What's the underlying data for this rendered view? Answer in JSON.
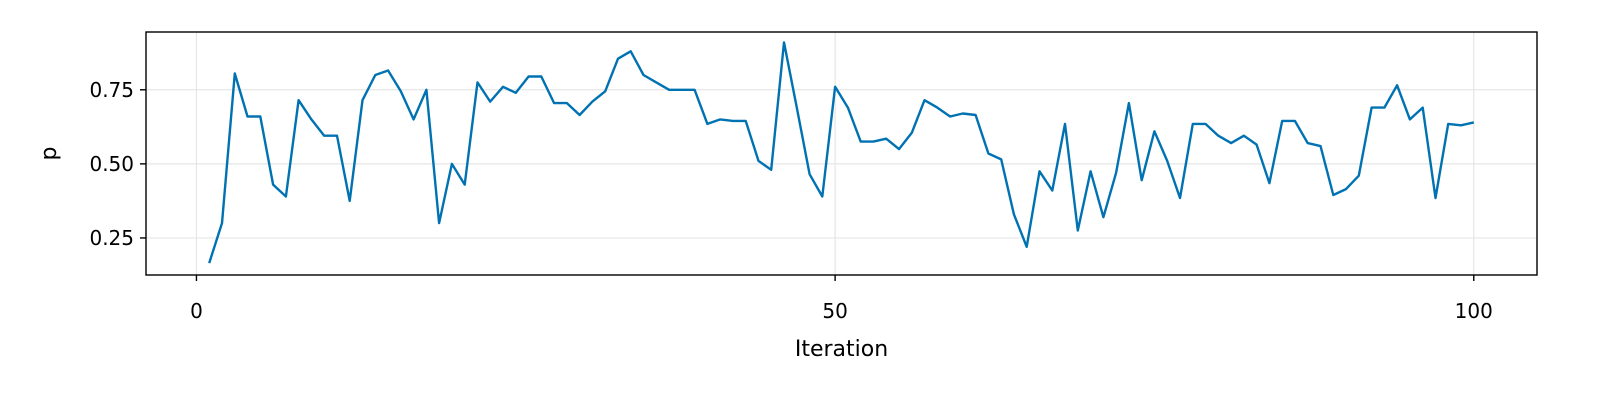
{
  "chart_data": {
    "type": "line",
    "title": "",
    "xlabel": "Iteration",
    "ylabel": "p",
    "xlim": [
      -3.95,
      104.95
    ],
    "ylim": [
      0.125,
      0.945
    ],
    "xticks": [
      0,
      50,
      100
    ],
    "xtick_labels": [
      "0",
      "50",
      "100"
    ],
    "yticks": [
      0.25,
      0.5,
      0.75
    ],
    "ytick_labels": [
      "0.25",
      "0.50",
      "0.75"
    ],
    "grid": true,
    "legend": "none",
    "series": [
      {
        "color": "#0072b2",
        "x": [
          1,
          2,
          3,
          4,
          5,
          6,
          7,
          8,
          9,
          10,
          11,
          12,
          13,
          14,
          15,
          16,
          17,
          18,
          19,
          20,
          21,
          22,
          23,
          24,
          25,
          26,
          27,
          28,
          29,
          30,
          31,
          32,
          33,
          34,
          35,
          36,
          37,
          38,
          39,
          40,
          41,
          42,
          43,
          44,
          45,
          46,
          47,
          48,
          49,
          50,
          51,
          52,
          53,
          54,
          55,
          56,
          57,
          58,
          59,
          60,
          61,
          62,
          63,
          64,
          65,
          66,
          67,
          68,
          69,
          70,
          71,
          72,
          73,
          74,
          75,
          76,
          77,
          78,
          79,
          80,
          81,
          82,
          83,
          84,
          85,
          86,
          87,
          88,
          89,
          90,
          91,
          92,
          93,
          94,
          95,
          96,
          97,
          98,
          99,
          100
        ],
        "y": [
          0.165,
          0.3,
          0.805,
          0.66,
          0.66,
          0.43,
          0.39,
          0.715,
          0.65,
          0.595,
          0.595,
          0.375,
          0.715,
          0.8,
          0.815,
          0.745,
          0.65,
          0.75,
          0.3,
          0.5,
          0.43,
          0.775,
          0.71,
          0.76,
          0.74,
          0.795,
          0.795,
          0.705,
          0.705,
          0.665,
          0.71,
          0.745,
          0.855,
          0.88,
          0.8,
          0.775,
          0.75,
          0.75,
          0.75,
          0.635,
          0.65,
          0.645,
          0.645,
          0.51,
          0.48,
          0.91,
          0.69,
          0.465,
          0.39,
          0.76,
          0.69,
          0.575,
          0.575,
          0.585,
          0.55,
          0.605,
          0.715,
          0.69,
          0.66,
          0.67,
          0.665,
          0.535,
          0.515,
          0.33,
          0.22,
          0.475,
          0.41,
          0.635,
          0.275,
          0.475,
          0.32,
          0.47,
          0.705,
          0.445,
          0.61,
          0.51,
          0.385,
          0.635,
          0.635,
          0.595,
          0.57,
          0.595,
          0.565,
          0.435,
          0.645,
          0.645,
          0.57,
          0.56,
          0.395,
          0.415,
          0.46,
          0.69,
          0.69,
          0.765,
          0.65,
          0.69,
          0.385,
          0.635,
          0.63,
          0.64
        ]
      }
    ]
  }
}
